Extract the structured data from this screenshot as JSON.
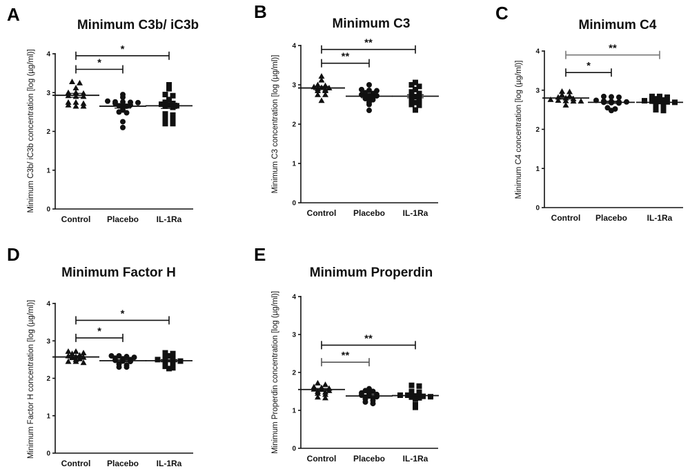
{
  "chart_data": [
    {
      "type": "scatter",
      "panel": "A",
      "title": "Minimum C3b/ iC3b",
      "xlabel": "",
      "ylabel": "Minimum C3b/ iC3b concentration [log (µg/ml)]",
      "ylim": [
        0,
        4
      ],
      "yticks": [
        "0",
        "1",
        "2",
        "3",
        "4"
      ],
      "categories": [
        "Control",
        "Placebo",
        "IL-1Ra"
      ],
      "markers": [
        "triangle",
        "circle",
        "square"
      ],
      "series": [
        {
          "name": "Control",
          "values": [
            3.28,
            3.25,
            3.12,
            3.0,
            2.98,
            3.0,
            2.9,
            2.9,
            2.92,
            2.75,
            2.72,
            2.65,
            2.65,
            2.68,
            2.75
          ],
          "mean": 2.93,
          "sem": 0.05
        },
        {
          "name": "Placebo",
          "values": [
            2.95,
            2.88,
            2.78,
            2.76,
            2.76,
            2.75,
            2.74,
            2.72,
            2.7,
            2.68,
            2.66,
            2.65,
            2.6,
            2.55,
            2.5,
            2.48,
            2.25,
            2.1
          ],
          "mean": 2.65,
          "sem": 0.05
        },
        {
          "name": "IL-1Ra",
          "values": [
            3.2,
            3.1,
            2.95,
            2.92,
            2.82,
            2.75,
            2.72,
            2.7,
            2.68,
            2.66,
            2.65,
            2.62,
            2.45,
            2.42,
            2.32,
            2.3,
            2.2,
            2.2
          ],
          "mean": 2.66,
          "sem": 0.07
        }
      ],
      "significance": [
        {
          "from": "Control",
          "to": "Placebo",
          "label": "*",
          "y": 3.6
        },
        {
          "from": "Control",
          "to": "IL-1Ra",
          "label": "*",
          "y": 3.95
        }
      ]
    },
    {
      "type": "scatter",
      "panel": "B",
      "title": "Minimum C3",
      "xlabel": "",
      "ylabel": "Minimum C3 concentration [log (µg/ml)]",
      "ylim": [
        0,
        4
      ],
      "yticks": [
        "0",
        "1",
        "2",
        "3",
        "4"
      ],
      "categories": [
        "Control",
        "Placebo",
        "IL-1Ra"
      ],
      "markers": [
        "triangle",
        "circle",
        "square"
      ],
      "series": [
        {
          "name": "Control",
          "values": [
            3.22,
            3.12,
            3.0,
            2.98,
            2.95,
            2.93,
            2.92,
            2.9,
            2.88,
            2.85,
            2.85,
            2.75,
            2.75,
            2.6
          ],
          "mean": 2.92,
          "sem": 0.04
        },
        {
          "name": "Placebo",
          "values": [
            3.0,
            2.88,
            2.86,
            2.85,
            2.8,
            2.78,
            2.75,
            2.72,
            2.72,
            2.7,
            2.68,
            2.65,
            2.62,
            2.6,
            2.55,
            2.5,
            2.35
          ],
          "mean": 2.71,
          "sem": 0.04
        },
        {
          "name": "IL-1Ra",
          "values": [
            3.06,
            3.0,
            2.96,
            2.88,
            2.82,
            2.78,
            2.75,
            2.72,
            2.7,
            2.65,
            2.62,
            2.6,
            2.58,
            2.55,
            2.5,
            2.48,
            2.36
          ],
          "mean": 2.71,
          "sem": 0.04
        }
      ],
      "significance": [
        {
          "from": "Control",
          "to": "Placebo",
          "label": "**",
          "y": 3.55
        },
        {
          "from": "Control",
          "to": "IL-1Ra",
          "label": "**",
          "y": 3.9
        }
      ]
    },
    {
      "type": "scatter",
      "panel": "C",
      "title": "Minimum C4",
      "xlabel": "",
      "ylabel": "Minimum C4 concentration [log (µg/ml)]",
      "ylim": [
        0,
        4
      ],
      "yticks": [
        "0",
        "1",
        "2",
        "3",
        "4"
      ],
      "categories": [
        "Control",
        "Placebo",
        "IL-1Ra"
      ],
      "markers": [
        "triangle",
        "circle",
        "square"
      ],
      "series": [
        {
          "name": "Control",
          "values": [
            2.97,
            2.96,
            2.88,
            2.85,
            2.82,
            2.8,
            2.78,
            2.76,
            2.74,
            2.73,
            2.72,
            2.72,
            2.62
          ],
          "mean": 2.8,
          "sem": 0.03
        },
        {
          "name": "Placebo",
          "values": [
            2.84,
            2.83,
            2.82,
            2.74,
            2.72,
            2.71,
            2.7,
            2.7,
            2.69,
            2.68,
            2.67,
            2.55,
            2.52,
            2.48
          ],
          "mean": 2.69,
          "sem": 0.03
        },
        {
          "name": "IL-1Ra",
          "values": [
            2.84,
            2.84,
            2.82,
            2.78,
            2.75,
            2.73,
            2.72,
            2.71,
            2.7,
            2.69,
            2.68,
            2.66,
            2.6,
            2.56,
            2.5,
            2.48
          ],
          "mean": 2.69,
          "sem": 0.03
        }
      ],
      "significance": [
        {
          "from": "Control",
          "to": "Placebo",
          "label": "*",
          "y": 3.45
        },
        {
          "from": "Control",
          "to": "IL-1Ra",
          "label": "**",
          "y": 3.9
        }
      ]
    },
    {
      "type": "scatter",
      "panel": "D",
      "title": "Minimum Factor H",
      "xlabel": "",
      "ylabel": "Minimum Factor H concentration [log (µg/ml)]",
      "ylim": [
        0,
        4
      ],
      "yticks": [
        "0",
        "1",
        "2",
        "3",
        "4"
      ],
      "categories": [
        "Control",
        "Placebo",
        "IL-1Ra"
      ],
      "markers": [
        "triangle",
        "circle",
        "square"
      ],
      "series": [
        {
          "name": "Control",
          "values": [
            2.72,
            2.72,
            2.68,
            2.66,
            2.62,
            2.6,
            2.58,
            2.56,
            2.55,
            2.52,
            2.5,
            2.45,
            2.45,
            2.42
          ],
          "mean": 2.57,
          "sem": 0.03
        },
        {
          "name": "Placebo",
          "values": [
            2.6,
            2.6,
            2.58,
            2.56,
            2.54,
            2.52,
            2.5,
            2.48,
            2.46,
            2.45,
            2.38,
            2.35,
            2.3,
            2.3
          ],
          "mean": 2.47,
          "sem": 0.03
        },
        {
          "name": "IL-1Ra",
          "values": [
            2.68,
            2.66,
            2.6,
            2.55,
            2.52,
            2.5,
            2.48,
            2.47,
            2.46,
            2.45,
            2.42,
            2.38,
            2.36,
            2.32,
            2.28,
            2.26
          ],
          "mean": 2.47,
          "sem": 0.03
        }
      ],
      "significance": [
        {
          "from": "Control",
          "to": "Placebo",
          "label": "*",
          "y": 3.08
        },
        {
          "from": "Control",
          "to": "IL-1Ra",
          "label": "*",
          "y": 3.55
        }
      ]
    },
    {
      "type": "scatter",
      "panel": "E",
      "title": "Minimum Properdin",
      "xlabel": "",
      "ylabel": "Minimum Properdin concentration [log (µg/ml)]",
      "ylim": [
        0,
        4
      ],
      "yticks": [
        "0",
        "1",
        "2",
        "3",
        "4"
      ],
      "categories": [
        "Control",
        "Placebo",
        "IL-1Ra"
      ],
      "markers": [
        "triangle",
        "circle",
        "square"
      ],
      "series": [
        {
          "name": "Control",
          "values": [
            1.72,
            1.68,
            1.62,
            1.6,
            1.58,
            1.56,
            1.55,
            1.52,
            1.5,
            1.48,
            1.45,
            1.42,
            1.35,
            1.33
          ],
          "mean": 1.55,
          "sem": 0.03
        },
        {
          "name": "Placebo",
          "values": [
            1.57,
            1.52,
            1.5,
            1.46,
            1.44,
            1.42,
            1.4,
            1.38,
            1.36,
            1.35,
            1.32,
            1.3,
            1.26,
            1.22,
            1.18
          ],
          "mean": 1.38,
          "sem": 0.03
        },
        {
          "name": "IL-1Ra",
          "values": [
            1.66,
            1.64,
            1.5,
            1.48,
            1.45,
            1.42,
            1.4,
            1.4,
            1.38,
            1.37,
            1.36,
            1.35,
            1.33,
            1.3,
            1.15,
            1.08
          ],
          "mean": 1.39,
          "sem": 0.03
        }
      ],
      "significance": [
        {
          "from": "Control",
          "to": "Placebo",
          "label": "**",
          "y": 2.27
        },
        {
          "from": "Control",
          "to": "IL-1Ra",
          "label": "**",
          "y": 2.72
        }
      ]
    }
  ]
}
